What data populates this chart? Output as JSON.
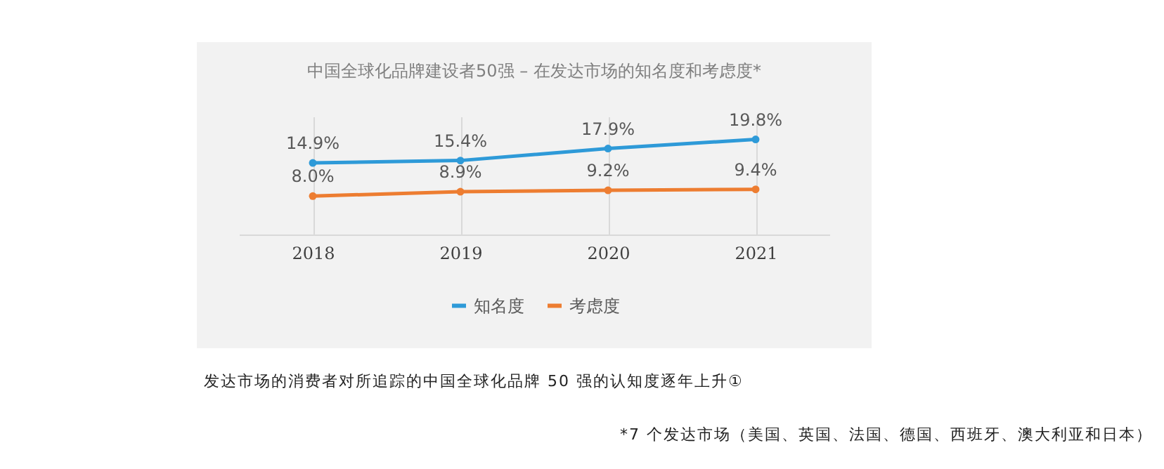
{
  "chart_data": {
    "type": "line",
    "title": "中国全球化品牌建设者50强 – 在发达市场的知名度和考虑度*",
    "categories": [
      "2018",
      "2019",
      "2020",
      "2021"
    ],
    "series": [
      {
        "name": "知名度",
        "color": "#2e9ad8",
        "values": [
          14.9,
          15.4,
          17.9,
          19.8
        ],
        "value_labels": [
          "14.9%",
          "15.4%",
          "17.9%",
          "19.8%"
        ]
      },
      {
        "name": "考虑度",
        "color": "#ed7d31",
        "values": [
          8.0,
          8.9,
          9.2,
          9.4
        ],
        "value_labels": [
          "8.0%",
          "8.9%",
          "9.2%",
          "9.4%"
        ]
      }
    ],
    "marker": "circle",
    "grid": "x",
    "legend": "bottom",
    "annotations": [
      "发达市场的消费者对所追踪的中国全球化品牌 50 强的认知度逐年上升①",
      "*7 个发达市场（美国、英国、法国、德国、西班牙、澳大利亚和日本）"
    ]
  }
}
